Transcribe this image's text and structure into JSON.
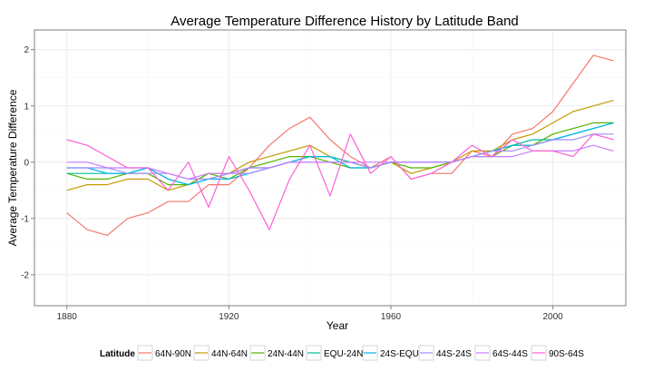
{
  "chart_data": {
    "type": "line",
    "title": "Average Temperature Difference History by Latitude Band",
    "xlabel": "Year",
    "ylabel": "Average Temperature Difference",
    "xlim": [
      1872,
      2018
    ],
    "ylim": [
      -2.55,
      2.35
    ],
    "x_ticks": [
      1880,
      1920,
      1960,
      2000
    ],
    "y_ticks": [
      -2,
      -1,
      0,
      1,
      2
    ],
    "grid": true,
    "legend": {
      "title": "Latitude",
      "position": "bottom"
    },
    "x": [
      1880,
      1885,
      1890,
      1895,
      1900,
      1905,
      1910,
      1915,
      1920,
      1925,
      1930,
      1935,
      1940,
      1945,
      1950,
      1955,
      1960,
      1965,
      1970,
      1975,
      1980,
      1985,
      1990,
      1995,
      2000,
      2005,
      2010,
      2015
    ],
    "series": [
      {
        "name": "64N-90N",
        "color": "#F8766D",
        "values": [
          -0.9,
          -1.2,
          -1.3,
          -1.0,
          -0.9,
          -0.7,
          -0.7,
          -0.4,
          -0.4,
          -0.1,
          0.3,
          0.6,
          0.8,
          0.4,
          0.1,
          -0.1,
          0.1,
          -0.3,
          -0.2,
          -0.2,
          0.2,
          0.1,
          0.5,
          0.6,
          0.9,
          1.4,
          1.9,
          1.8
        ]
      },
      {
        "name": "44N-64N",
        "color": "#C49A00",
        "values": [
          -0.5,
          -0.4,
          -0.4,
          -0.3,
          -0.3,
          -0.5,
          -0.4,
          -0.2,
          -0.2,
          0.0,
          0.1,
          0.2,
          0.3,
          0.1,
          0.0,
          -0.1,
          0.0,
          -0.2,
          -0.1,
          0.0,
          0.2,
          0.2,
          0.4,
          0.5,
          0.7,
          0.9,
          1.0,
          1.1
        ]
      },
      {
        "name": "24N-44N",
        "color": "#53B400",
        "values": [
          -0.2,
          -0.3,
          -0.3,
          -0.2,
          -0.2,
          -0.4,
          -0.4,
          -0.2,
          -0.3,
          -0.1,
          0.0,
          0.1,
          0.1,
          0.0,
          -0.1,
          -0.1,
          0.0,
          -0.1,
          -0.1,
          0.0,
          0.1,
          0.1,
          0.3,
          0.3,
          0.5,
          0.6,
          0.7,
          0.7
        ]
      },
      {
        "name": "EQU-24N",
        "color": "#00C094",
        "values": [
          -0.2,
          -0.2,
          -0.2,
          -0.2,
          -0.1,
          -0.3,
          -0.4,
          -0.3,
          -0.2,
          -0.1,
          -0.1,
          0.0,
          0.1,
          0.1,
          0.0,
          -0.1,
          0.0,
          0.0,
          0.0,
          0.0,
          0.1,
          0.2,
          0.3,
          0.4,
          0.4,
          0.5,
          0.6,
          0.7
        ]
      },
      {
        "name": "24S-EQU",
        "color": "#00B6EB",
        "values": [
          -0.1,
          -0.1,
          -0.2,
          -0.2,
          -0.1,
          -0.3,
          -0.4,
          -0.3,
          -0.3,
          -0.2,
          -0.1,
          0.0,
          0.1,
          0.1,
          -0.1,
          -0.1,
          0.0,
          0.0,
          0.0,
          0.0,
          0.1,
          0.2,
          0.3,
          0.3,
          0.4,
          0.5,
          0.6,
          0.7
        ]
      },
      {
        "name": "44S-24S",
        "color": "#A58AFF",
        "values": [
          -0.1,
          -0.1,
          -0.1,
          -0.2,
          -0.2,
          -0.2,
          -0.3,
          -0.3,
          -0.2,
          -0.2,
          -0.1,
          0.0,
          0.0,
          0.0,
          0.0,
          -0.1,
          0.0,
          0.0,
          0.0,
          0.0,
          0.1,
          0.2,
          0.2,
          0.3,
          0.4,
          0.4,
          0.5,
          0.5
        ]
      },
      {
        "name": "64S-44S",
        "color": "#C77CFF",
        "values": [
          0.0,
          0.0,
          -0.1,
          -0.1,
          -0.1,
          -0.2,
          -0.3,
          -0.2,
          -0.2,
          -0.1,
          -0.1,
          0.0,
          0.0,
          0.0,
          0.0,
          0.0,
          0.0,
          0.0,
          0.0,
          0.0,
          0.1,
          0.1,
          0.1,
          0.2,
          0.2,
          0.2,
          0.3,
          0.2
        ]
      },
      {
        "name": "90S-64S",
        "color": "#FB61D7",
        "values": [
          0.4,
          0.3,
          0.1,
          -0.1,
          -0.1,
          -0.5,
          0.0,
          -0.8,
          0.1,
          -0.5,
          -1.2,
          -0.3,
          0.3,
          -0.6,
          0.5,
          -0.2,
          0.1,
          -0.3,
          -0.2,
          0.0,
          0.3,
          0.1,
          0.4,
          0.2,
          0.2,
          0.1,
          0.5,
          0.4
        ]
      }
    ]
  }
}
